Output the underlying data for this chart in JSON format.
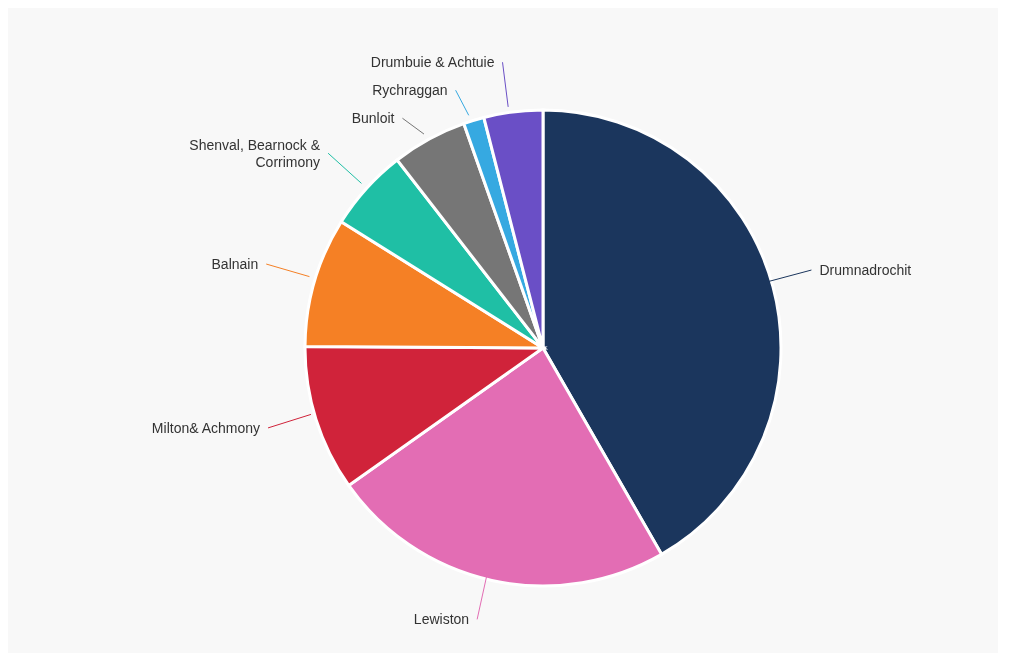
{
  "chart_data": {
    "type": "pie",
    "categories": [
      "Drumnadrochit",
      "Lewiston",
      "Milton& Achmony",
      "Balnain",
      "Shenval, Bearnock & Corrimony",
      "Bunloit",
      "Rychraggan",
      "Drumbuie & Achtuie"
    ],
    "values": [
      41.7,
      23.5,
      9.9,
      8.8,
      5.6,
      5.1,
      1.4,
      4.0
    ],
    "colors": [
      "#1b365d",
      "#e36db4",
      "#d0233a",
      "#f58025",
      "#1fbfa5",
      "#767676",
      "#36a9e1",
      "#6a4fc6"
    ],
    "legend": false
  }
}
